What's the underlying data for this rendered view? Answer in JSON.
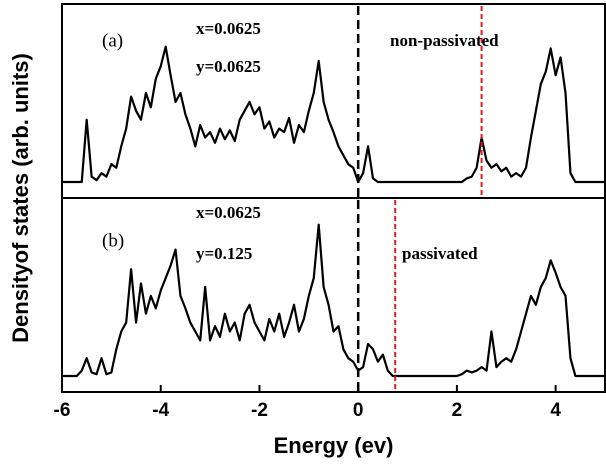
{
  "chart_data": [
    {
      "type": "line",
      "ylabel": "Densityof states (arb. units)",
      "xlim": [
        -6,
        5
      ],
      "ylim": [
        -0.9,
        10
      ],
      "annotations": [
        "(a)",
        "x=0.0625",
        "y=0.0625",
        "non-passivated"
      ],
      "vlines": [
        {
          "value": 0,
          "color": "#000000"
        },
        {
          "value": 2.5,
          "color": "#e31a1c"
        }
      ],
      "x": [
        -6,
        -5.9,
        -5.8,
        -5.7,
        -5.6,
        -5.5,
        -5.4,
        -5.3,
        -5.2,
        -5.1,
        -5,
        -4.9,
        -4.8,
        -4.7,
        -4.6,
        -4.5,
        -4.4,
        -4.3,
        -4.2,
        -4.1,
        -4,
        -3.9,
        -3.8,
        -3.7,
        -3.6,
        -3.5,
        -3.4,
        -3.3,
        -3.2,
        -3.1,
        -3,
        -2.9,
        -2.8,
        -2.7,
        -2.6,
        -2.5,
        -2.4,
        -2.3,
        -2.2,
        -2.1,
        -2,
        -1.9,
        -1.8,
        -1.7,
        -1.6,
        -1.5,
        -1.4,
        -1.3,
        -1.2,
        -1.1,
        -1,
        -0.9,
        -0.8,
        -0.7,
        -0.6,
        -0.5,
        -0.4,
        -0.3,
        -0.2,
        -0.1,
        0,
        0.1,
        0.2,
        0.3,
        0.4,
        0.5,
        0.6,
        0.7,
        0.8,
        0.9,
        1,
        1.1,
        1.2,
        1.3,
        1.4,
        1.5,
        1.6,
        1.7,
        1.8,
        1.9,
        2,
        2.1,
        2.2,
        2.3,
        2.4,
        2.5,
        2.6,
        2.7,
        2.8,
        2.9,
        3,
        3.1,
        3.2,
        3.3,
        3.4,
        3.5,
        3.6,
        3.7,
        3.8,
        3.9,
        4,
        4.1,
        4.2,
        4.3,
        4.4,
        4.5,
        4.6,
        4.7,
        4.8,
        4.9,
        5
      ],
      "series": [
        {
          "color": "#000000",
          "values": [
            0,
            0,
            0,
            0,
            0,
            3.5,
            0.3,
            0.1,
            0.5,
            0.3,
            1.0,
            0.8,
            2.0,
            3.0,
            4.8,
            4.0,
            3.5,
            5.0,
            4.2,
            5.8,
            6.5,
            7.6,
            6.0,
            4.5,
            5.0,
            3.8,
            3.0,
            2.0,
            3.2,
            2.5,
            2.8,
            2.2,
            3.0,
            2.4,
            2.9,
            2.3,
            3.5,
            4.0,
            4.5,
            3.8,
            4.2,
            3.0,
            3.4,
            2.5,
            3.0,
            2.8,
            3.6,
            2.2,
            3.2,
            2.8,
            4.0,
            5.0,
            6.8,
            4.5,
            3.5,
            2.8,
            2.0,
            1.5,
            1.0,
            0.8,
            0,
            0.5,
            2.0,
            0.2,
            0,
            0,
            0,
            0,
            0,
            0,
            0,
            0,
            0,
            0,
            0,
            0,
            0,
            0,
            0,
            0,
            0,
            0,
            0.2,
            0.3,
            0.8,
            2.5,
            1.2,
            0.8,
            1.0,
            0.6,
            0.8,
            0.3,
            0.5,
            0.3,
            0.8,
            2.5,
            4.0,
            5.5,
            6.2,
            7.5,
            6.0,
            7.0,
            5.0,
            0.5,
            0,
            0,
            0,
            0,
            0,
            0,
            0
          ]
        }
      ]
    },
    {
      "type": "line",
      "xlabel": "Energy (ev)",
      "xlim": [
        -6,
        5
      ],
      "ylim": [
        -0.9,
        10
      ],
      "xticks": [
        -6,
        -4,
        -2,
        0,
        2,
        4
      ],
      "annotations": [
        "x=0.0625",
        "(b)",
        "y=0.125",
        "passivated"
      ],
      "vlines": [
        {
          "value": 0,
          "color": "#000000"
        },
        {
          "value": 0.75,
          "color": "#e31a1c"
        }
      ],
      "x": [
        -6,
        -5.9,
        -5.8,
        -5.7,
        -5.6,
        -5.5,
        -5.4,
        -5.3,
        -5.2,
        -5.1,
        -5,
        -4.9,
        -4.8,
        -4.7,
        -4.6,
        -4.5,
        -4.4,
        -4.3,
        -4.2,
        -4.1,
        -4,
        -3.9,
        -3.8,
        -3.7,
        -3.6,
        -3.5,
        -3.4,
        -3.3,
        -3.2,
        -3.1,
        -3,
        -2.9,
        -2.8,
        -2.7,
        -2.6,
        -2.5,
        -2.4,
        -2.3,
        -2.2,
        -2.1,
        -2,
        -1.9,
        -1.8,
        -1.7,
        -1.6,
        -1.5,
        -1.4,
        -1.3,
        -1.2,
        -1.1,
        -1,
        -0.9,
        -0.8,
        -0.7,
        -0.6,
        -0.5,
        -0.4,
        -0.3,
        -0.2,
        -0.1,
        0,
        0.1,
        0.2,
        0.3,
        0.4,
        0.5,
        0.6,
        0.7,
        0.8,
        0.9,
        1,
        1.1,
        1.2,
        1.3,
        1.4,
        1.5,
        1.6,
        1.7,
        1.8,
        1.9,
        2,
        2.1,
        2.2,
        2.3,
        2.4,
        2.5,
        2.6,
        2.7,
        2.8,
        2.9,
        3,
        3.1,
        3.2,
        3.3,
        3.4,
        3.5,
        3.6,
        3.7,
        3.8,
        3.9,
        4,
        4.1,
        4.2,
        4.3,
        4.4,
        4.5,
        4.6,
        4.7,
        4.8,
        4.9,
        5
      ],
      "series": [
        {
          "color": "#000000",
          "values": [
            0,
            0,
            0,
            0,
            0.3,
            1.0,
            0.2,
            0.1,
            1.0,
            0.1,
            0.2,
            1.5,
            2.5,
            3.0,
            6.0,
            3.0,
            5.2,
            3.5,
            4.5,
            3.8,
            4.8,
            5.5,
            6.2,
            7.1,
            4.5,
            3.8,
            3.0,
            2.5,
            2.0,
            5.0,
            2.0,
            2.8,
            2.2,
            3.5,
            2.5,
            3.0,
            2.0,
            3.5,
            4.0,
            3.0,
            2.5,
            2.0,
            3.2,
            2.5,
            3.5,
            2.2,
            3.0,
            4.0,
            2.5,
            3.2,
            4.5,
            5.5,
            8.5,
            5.0,
            4.0,
            2.5,
            2.8,
            1.5,
            1.0,
            0.8,
            0.3,
            0.5,
            1.8,
            1.5,
            0.8,
            1.2,
            0.3,
            0,
            0,
            0,
            0,
            0,
            0,
            0,
            0,
            0,
            0,
            0,
            0,
            0,
            0,
            0.1,
            0.3,
            0.2,
            0.3,
            0.5,
            0.3,
            2.5,
            0.5,
            0.8,
            1.0,
            0.8,
            1.5,
            2.5,
            3.5,
            4.5,
            4.0,
            5.0,
            5.5,
            6.5,
            5.8,
            5.0,
            4.5,
            1.0,
            0,
            0,
            0,
            0,
            0,
            0,
            0
          ]
        }
      ]
    }
  ]
}
